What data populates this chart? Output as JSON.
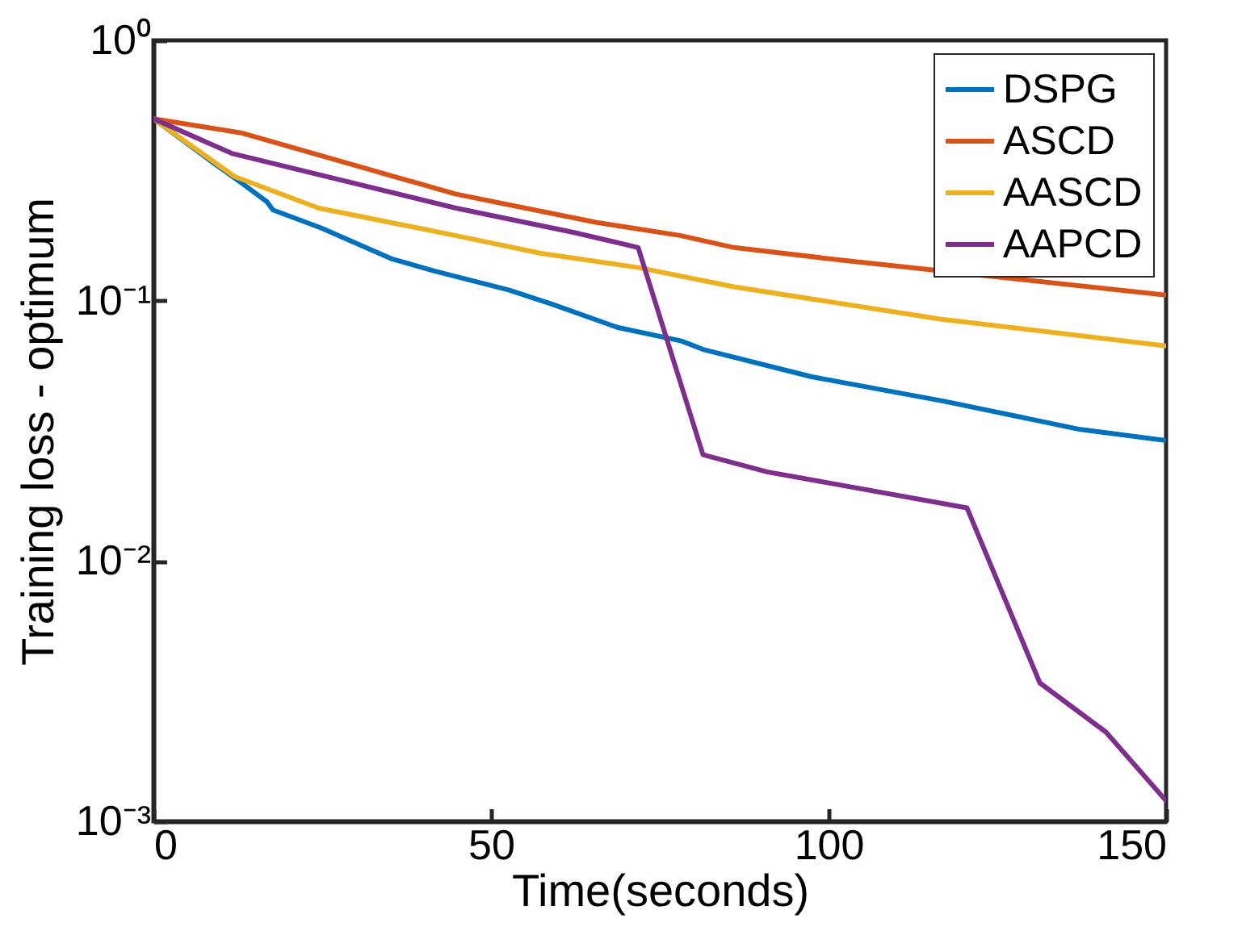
{
  "chart_data": {
    "type": "line",
    "xlabel": "Time(seconds)",
    "ylabel": "Training loss - optimum",
    "log": "y",
    "grid": false,
    "legend": "top right",
    "line_style": "solid",
    "marker": "none",
    "xlim": [
      0,
      150
    ],
    "xticks": [
      0,
      50,
      100,
      150
    ],
    "ylim": [
      0.001,
      1
    ],
    "yticks": [
      {
        "value": 0.001,
        "label": "10⁻³"
      },
      {
        "value": 0.01,
        "label": "10⁻²"
      },
      {
        "value": 0.1,
        "label": "10⁻¹"
      },
      {
        "value": 1,
        "label": "10⁰"
      }
    ],
    "series": [
      {
        "name": "DSPG",
        "color": "#0072bd",
        "x": [
          0,
          8.9,
          12.9,
          16.8,
          17.7,
          24.9,
          35.2,
          41.6,
          52.6,
          59,
          68.7,
          78.2,
          81.4,
          97.5,
          117.3,
          137.3,
          150
        ],
        "values": [
          0.5,
          0.338,
          0.285,
          0.24,
          0.223,
          0.19,
          0.145,
          0.13,
          0.11,
          0.097,
          0.079,
          0.07,
          0.065,
          0.051,
          0.041,
          0.032,
          0.029
        ]
      },
      {
        "name": "ASCD",
        "color": "#d95319",
        "x": [
          0,
          13.2,
          44.7,
          65.5,
          78,
          86,
          102,
          150
        ],
        "values": [
          0.5,
          0.44,
          0.257,
          0.2,
          0.178,
          0.16,
          0.143,
          0.105
        ]
      },
      {
        "name": "AASCD",
        "color": "#edb120",
        "x": [
          0,
          12,
          24.4,
          44.7,
          57.4,
          71.8,
          86,
          116.5,
          150
        ],
        "values": [
          0.5,
          0.3,
          0.227,
          0.178,
          0.152,
          0.134,
          0.113,
          0.085,
          0.067
        ]
      },
      {
        "name": "AAPCD",
        "color": "#7e2f8e",
        "x": [
          0,
          11.6,
          44.7,
          62.2,
          71.8,
          81.4,
          90.9,
          120.5,
          131.3,
          141.1,
          150
        ],
        "values": [
          0.5,
          0.368,
          0.227,
          0.183,
          0.16,
          0.0256,
          0.022,
          0.016,
          0.0034,
          0.0022,
          0.0012
        ]
      }
    ]
  }
}
